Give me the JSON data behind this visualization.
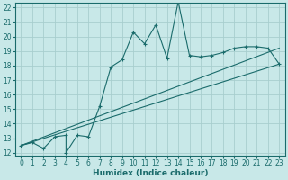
{
  "xlabel": "Humidex (Indice chaleur)",
  "bg_color": "#c8e8e8",
  "grid_color": "#a8cece",
  "line_color": "#1a6b6b",
  "xlim": [
    -0.5,
    23.5
  ],
  "ylim": [
    11.8,
    22.3
  ],
  "xticks": [
    0,
    1,
    2,
    3,
    4,
    5,
    6,
    7,
    8,
    9,
    10,
    11,
    12,
    13,
    14,
    15,
    16,
    17,
    18,
    19,
    20,
    21,
    22,
    23
  ],
  "yticks": [
    12,
    13,
    14,
    15,
    16,
    17,
    18,
    19,
    20,
    21,
    22
  ],
  "curve1_x": [
    0,
    1,
    2,
    3,
    4,
    4,
    5,
    6,
    7,
    8,
    9,
    10,
    11,
    12,
    13,
    14,
    15,
    16,
    17,
    18,
    19,
    20,
    21,
    22,
    23
  ],
  "curve1_y": [
    12.5,
    12.7,
    12.3,
    13.1,
    13.2,
    12.0,
    13.2,
    13.1,
    15.2,
    17.9,
    18.4,
    20.3,
    19.5,
    20.8,
    18.5,
    22.4,
    18.7,
    18.6,
    18.7,
    18.9,
    19.2,
    19.3,
    19.3,
    19.2,
    18.1
  ],
  "line1_x": [
    0,
    23
  ],
  "line1_y": [
    12.5,
    19.2
  ],
  "line2_x": [
    0,
    23
  ],
  "line2_y": [
    12.5,
    18.1
  ]
}
